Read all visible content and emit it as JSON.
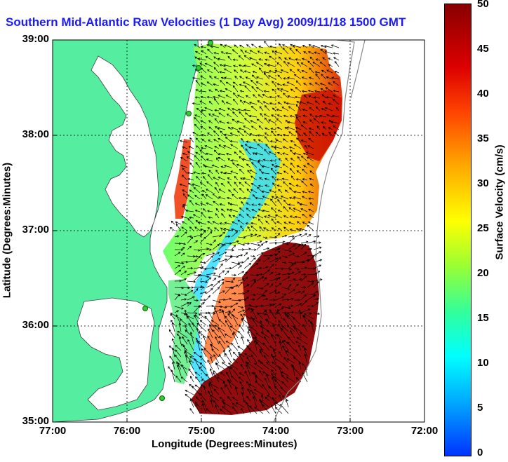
{
  "title": "Southern Mid-Atlantic Raw Velocities (1 Day Avg) 2009/11/18 1500 GMT",
  "x_axis": {
    "label": "Longitude (Degrees:Minutes)",
    "ticks": [
      "77:00",
      "76:00",
      "75:00",
      "74:00",
      "73:00",
      "72:00"
    ]
  },
  "y_axis": {
    "label": "Latitude (Degrees:Minutes)",
    "ticks": [
      "39:00",
      "38:00",
      "37:00",
      "36:00",
      "35:00"
    ]
  },
  "colorbar": {
    "label": "Surface Velocity (cm/s)",
    "ticks": [
      "50",
      "45",
      "40",
      "35",
      "30",
      "25",
      "20",
      "15",
      "10",
      "5",
      "0"
    ],
    "min": 0,
    "max": 50
  },
  "colors": {
    "title": "#1a1aff",
    "land": "#55eea0",
    "water": "#ffffff",
    "arrows": "#000000",
    "stations": "#33cc33"
  }
}
